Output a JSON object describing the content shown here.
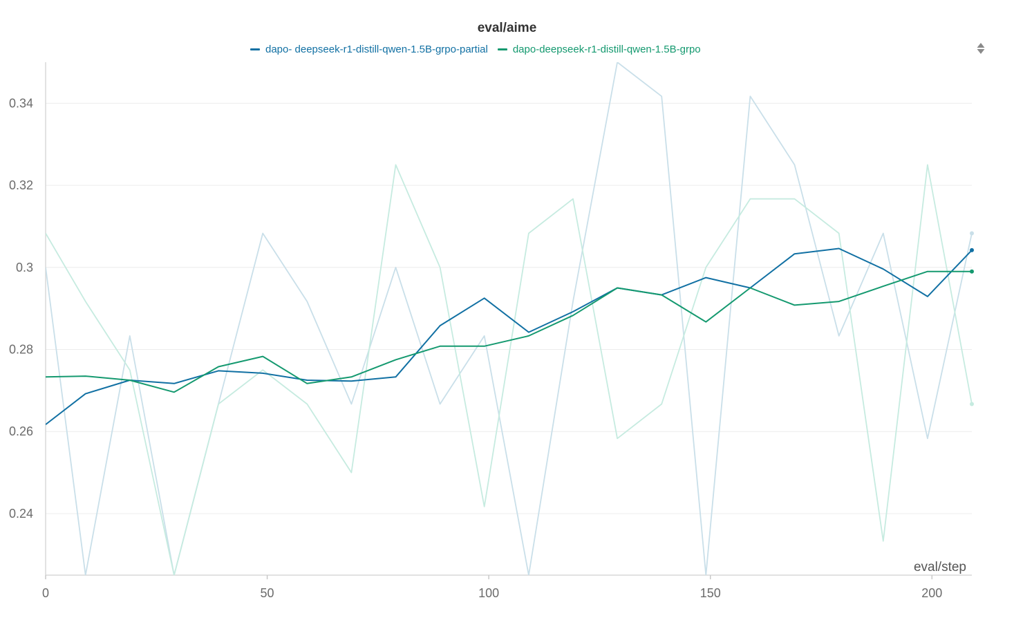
{
  "chart_data": {
    "type": "line",
    "title": "eval/aime",
    "xlabel": "eval/step",
    "ylabel": "",
    "xlim": [
      0,
      209
    ],
    "ylim": [
      0.225,
      0.35
    ],
    "x_ticks": [
      0,
      50,
      100,
      150,
      200
    ],
    "y_ticks": [
      0.24,
      0.26,
      0.28,
      0.3,
      0.32,
      0.34
    ],
    "y_tick_labels": [
      "0.24",
      "0.26",
      "0.28",
      "0.3",
      "0.32",
      "0.34"
    ],
    "grid": true,
    "legend_position": "top-center",
    "x": [
      0,
      9,
      19,
      29,
      39,
      49,
      59,
      69,
      79,
      89,
      99,
      109,
      119,
      129,
      139,
      149,
      159,
      169,
      179,
      189,
      199,
      209
    ],
    "series": [
      {
        "name": "dapo- deepseek-r1-distill-qwen-1.5B-grpo-partial",
        "color": "#1170a3",
        "raw_color": "#c9dfe9",
        "smoothed": [
          0.2617,
          0.2692,
          0.2725,
          0.2717,
          0.2748,
          0.2742,
          0.2725,
          0.2723,
          0.2733,
          0.2858,
          0.2925,
          0.2842,
          0.2892,
          0.295,
          0.2933,
          0.2975,
          0.295,
          0.3033,
          0.3046,
          0.2996,
          0.2929,
          0.3042
        ],
        "raw": [
          0.3,
          0.225,
          0.2833,
          0.225,
          0.2667,
          0.3083,
          0.2917,
          0.2667,
          0.3,
          0.2667,
          0.2833,
          0.225,
          0.2917,
          0.35,
          0.3417,
          0.225,
          0.3417,
          0.325,
          0.2833,
          0.3083,
          0.2583,
          0.3083
        ]
      },
      {
        "name": "dapo-deepseek-r1-distill-qwen-1.5B-grpo",
        "color": "#14996f",
        "raw_color": "#c6ebe0",
        "smoothed": [
          0.2733,
          0.2735,
          0.2725,
          0.2696,
          0.2758,
          0.2783,
          0.2717,
          0.2733,
          0.2775,
          0.2808,
          0.2808,
          0.2833,
          0.2883,
          0.295,
          0.2933,
          0.2867,
          0.295,
          0.2908,
          0.2917,
          0.2954,
          0.299,
          0.299
        ],
        "raw": [
          0.3083,
          0.2917,
          0.275,
          0.225,
          0.2667,
          0.275,
          0.2667,
          0.25,
          0.325,
          0.3,
          0.2417,
          0.3083,
          0.3167,
          0.2583,
          0.2667,
          0.3,
          0.3167,
          0.3167,
          0.3083,
          0.2333,
          0.325,
          0.2667
        ]
      }
    ]
  },
  "ui": {
    "sort_icon": "sort-updown-icon"
  }
}
